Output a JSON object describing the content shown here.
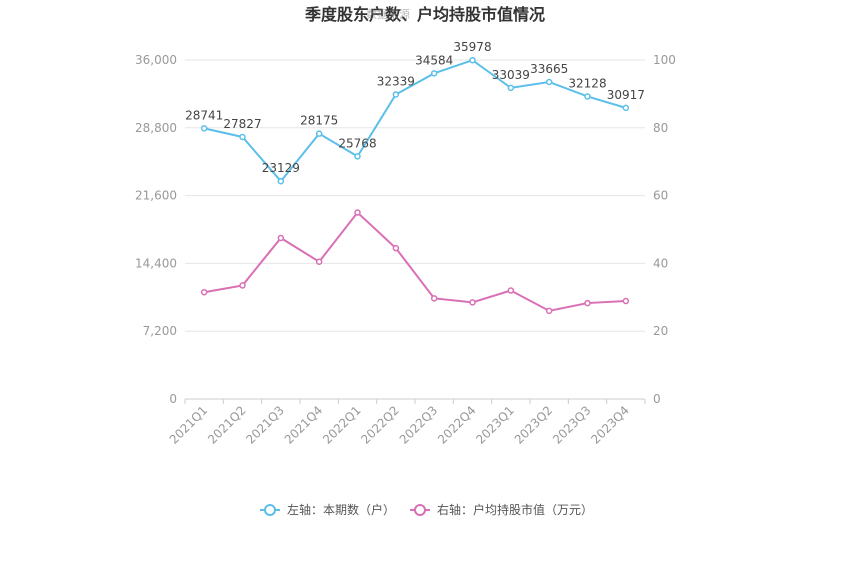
{
  "chart_data": {
    "type": "line",
    "title": "季度股东户数、户均持股市值情况",
    "watermark": "数据来源",
    "categories": [
      "2021Q1",
      "2021Q2",
      "2021Q3",
      "2021Q4",
      "2022Q1",
      "2022Q2",
      "2022Q3",
      "2022Q4",
      "2023Q1",
      "2023Q2",
      "2023Q3",
      "2023Q4"
    ],
    "left_axis": {
      "ylim": [
        0,
        36000
      ],
      "ticks": [
        "0",
        "7,200",
        "14,400",
        "21,600",
        "28,800",
        "36,000"
      ]
    },
    "right_axis": {
      "ylim": [
        0,
        100
      ],
      "ticks": [
        "0",
        "20",
        "40",
        "60",
        "80",
        "100"
      ]
    },
    "grid": true,
    "legend_position": "bottom",
    "series": [
      {
        "name": "左轴：本期数（户）",
        "axis": "left",
        "color": "#5bbfea",
        "values": [
          28741,
          27827,
          23129,
          28175,
          25768,
          32339,
          34584,
          35978,
          33039,
          33665,
          32128,
          30917
        ],
        "labels": [
          "28741",
          "27827",
          "23129",
          "28175",
          "25768",
          "32339",
          "34584",
          "35978",
          "33039",
          "33665",
          "32128",
          "30917"
        ]
      },
      {
        "name": "右轴：户均持股市值（万元）",
        "axis": "right",
        "color": "#d96fb5",
        "values": [
          31.5,
          33.5,
          47.5,
          40.5,
          55.0,
          44.5,
          29.7,
          28.5,
          32.0,
          26.0,
          28.3,
          28.9
        ]
      }
    ]
  }
}
